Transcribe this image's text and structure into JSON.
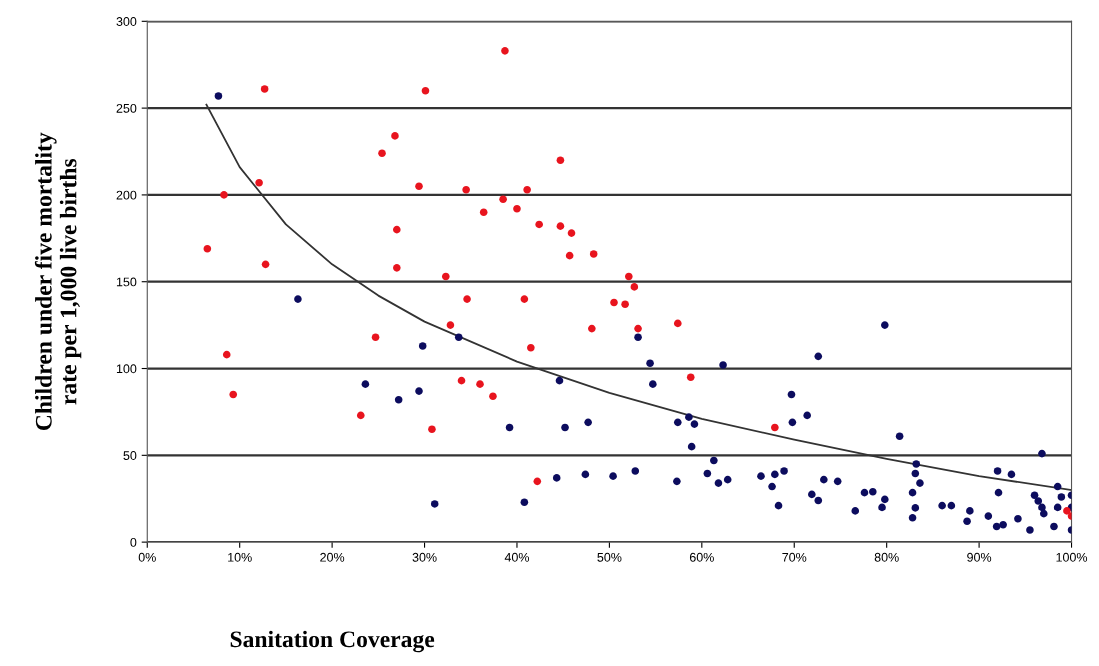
{
  "chart_data": {
    "type": "scatter",
    "xlabel": "Sanitation Coverage",
    "ylabel": "Children under five mortality\nrate per 1,000 live births",
    "xlim": [
      0,
      100
    ],
    "ylim": [
      0,
      300
    ],
    "xticks": [
      {
        "value": 0,
        "label": "0%"
      },
      {
        "value": 10,
        "label": "10%"
      },
      {
        "value": 20,
        "label": "20%"
      },
      {
        "value": 30,
        "label": "30%"
      },
      {
        "value": 40,
        "label": "40%"
      },
      {
        "value": 50,
        "label": "50%"
      },
      {
        "value": 60,
        "label": "60%"
      },
      {
        "value": 70,
        "label": "70%"
      },
      {
        "value": 80,
        "label": "80%"
      },
      {
        "value": 90,
        "label": "90%"
      },
      {
        "value": 100,
        "label": "100%"
      }
    ],
    "yticks": [
      0,
      50,
      100,
      150,
      200,
      250,
      300
    ],
    "grid": "y",
    "marker": "circle",
    "series": [
      {
        "color": "#0c0c5e",
        "x": [
          7.7,
          16.3,
          29.8,
          23.6,
          27.2,
          29.4,
          31.1,
          33.7,
          53.1,
          54.4,
          62.3,
          54.7,
          44.6,
          39.2,
          45.2,
          47.7,
          57.4,
          58.6,
          59.2,
          58.9,
          61.3,
          44.3,
          47.4,
          50.4,
          52.8,
          57.3,
          60.6,
          61.8,
          62.8,
          66.4,
          40.8,
          79.8,
          72.6,
          69.7,
          69.8,
          71.4,
          81.4,
          96.8,
          67.9,
          68.9,
          67.6,
          68.3,
          73.2,
          74.7,
          71.9,
          72.6,
          76.6,
          77.6,
          78.5,
          79.8,
          79.5,
          83.2,
          83.1,
          83.6,
          82.8,
          83.1,
          82.8,
          86.0,
          87.0,
          89.0,
          88.7,
          92.0,
          93.5,
          92.1,
          91.0,
          91.9,
          92.6,
          94.2,
          95.5,
          98.1,
          96.0,
          96.4,
          96.8,
          97.0,
          98.5,
          100,
          98.9,
          98.5,
          100,
          100
        ],
        "values": [
          257,
          140,
          113,
          91,
          82,
          87,
          22,
          118,
          118,
          103,
          102,
          91,
          93,
          66,
          66,
          69,
          69,
          72,
          68,
          55,
          47,
          37,
          39,
          38,
          41,
          35,
          39.5,
          34,
          36,
          38,
          23,
          125,
          107,
          85,
          69,
          73,
          61,
          51,
          39,
          41,
          32,
          21,
          36,
          35,
          27.5,
          24,
          18,
          28.5,
          29,
          24.6,
          20,
          45,
          39.5,
          34,
          28.5,
          19.7,
          14,
          21,
          21,
          18,
          12,
          41,
          39,
          28.5,
          15,
          9,
          10,
          13.5,
          7,
          9,
          27,
          23.7,
          20,
          16.4,
          32,
          27,
          26,
          20,
          20,
          7
        ]
      },
      {
        "color": "#e8141e",
        "x": [
          6.5,
          8.3,
          8.6,
          9.3,
          12.7,
          12.1,
          12.8,
          30.1,
          26.8,
          25.4,
          29.4,
          27.0,
          27.0,
          32.3,
          24.7,
          23.1,
          30.8,
          32.8,
          38.7,
          44.7,
          34.5,
          41.1,
          38.5,
          36.4,
          40.0,
          42.4,
          44.7,
          45.9,
          45.7,
          48.3,
          52.1,
          52.7,
          34.6,
          40.8,
          50.5,
          51.7,
          48.1,
          53.1,
          57.4,
          41.5,
          34.0,
          36.0,
          37.4,
          58.8,
          42.2,
          67.9,
          99.5,
          100
        ],
        "values": [
          169,
          200,
          108,
          85,
          261,
          207,
          160,
          260,
          234,
          224,
          205,
          180,
          158,
          153,
          118,
          73,
          65,
          125,
          283,
          220,
          203,
          203,
          197.5,
          190,
          192,
          183,
          182,
          178,
          165,
          166,
          153,
          147,
          140,
          140,
          138,
          137,
          123,
          123,
          126,
          112,
          93,
          91,
          84,
          95,
          35,
          66,
          18,
          15
        ]
      },
      {
        "type": "line",
        "color": "#333333",
        "marker": "none",
        "x": [
          6.4,
          10,
          15,
          20,
          25,
          30,
          40,
          50,
          60,
          70,
          80,
          90,
          100
        ],
        "values": [
          252,
          216,
          183,
          160,
          142,
          127,
          104,
          86,
          71,
          59,
          48,
          38,
          30
        ]
      }
    ]
  }
}
